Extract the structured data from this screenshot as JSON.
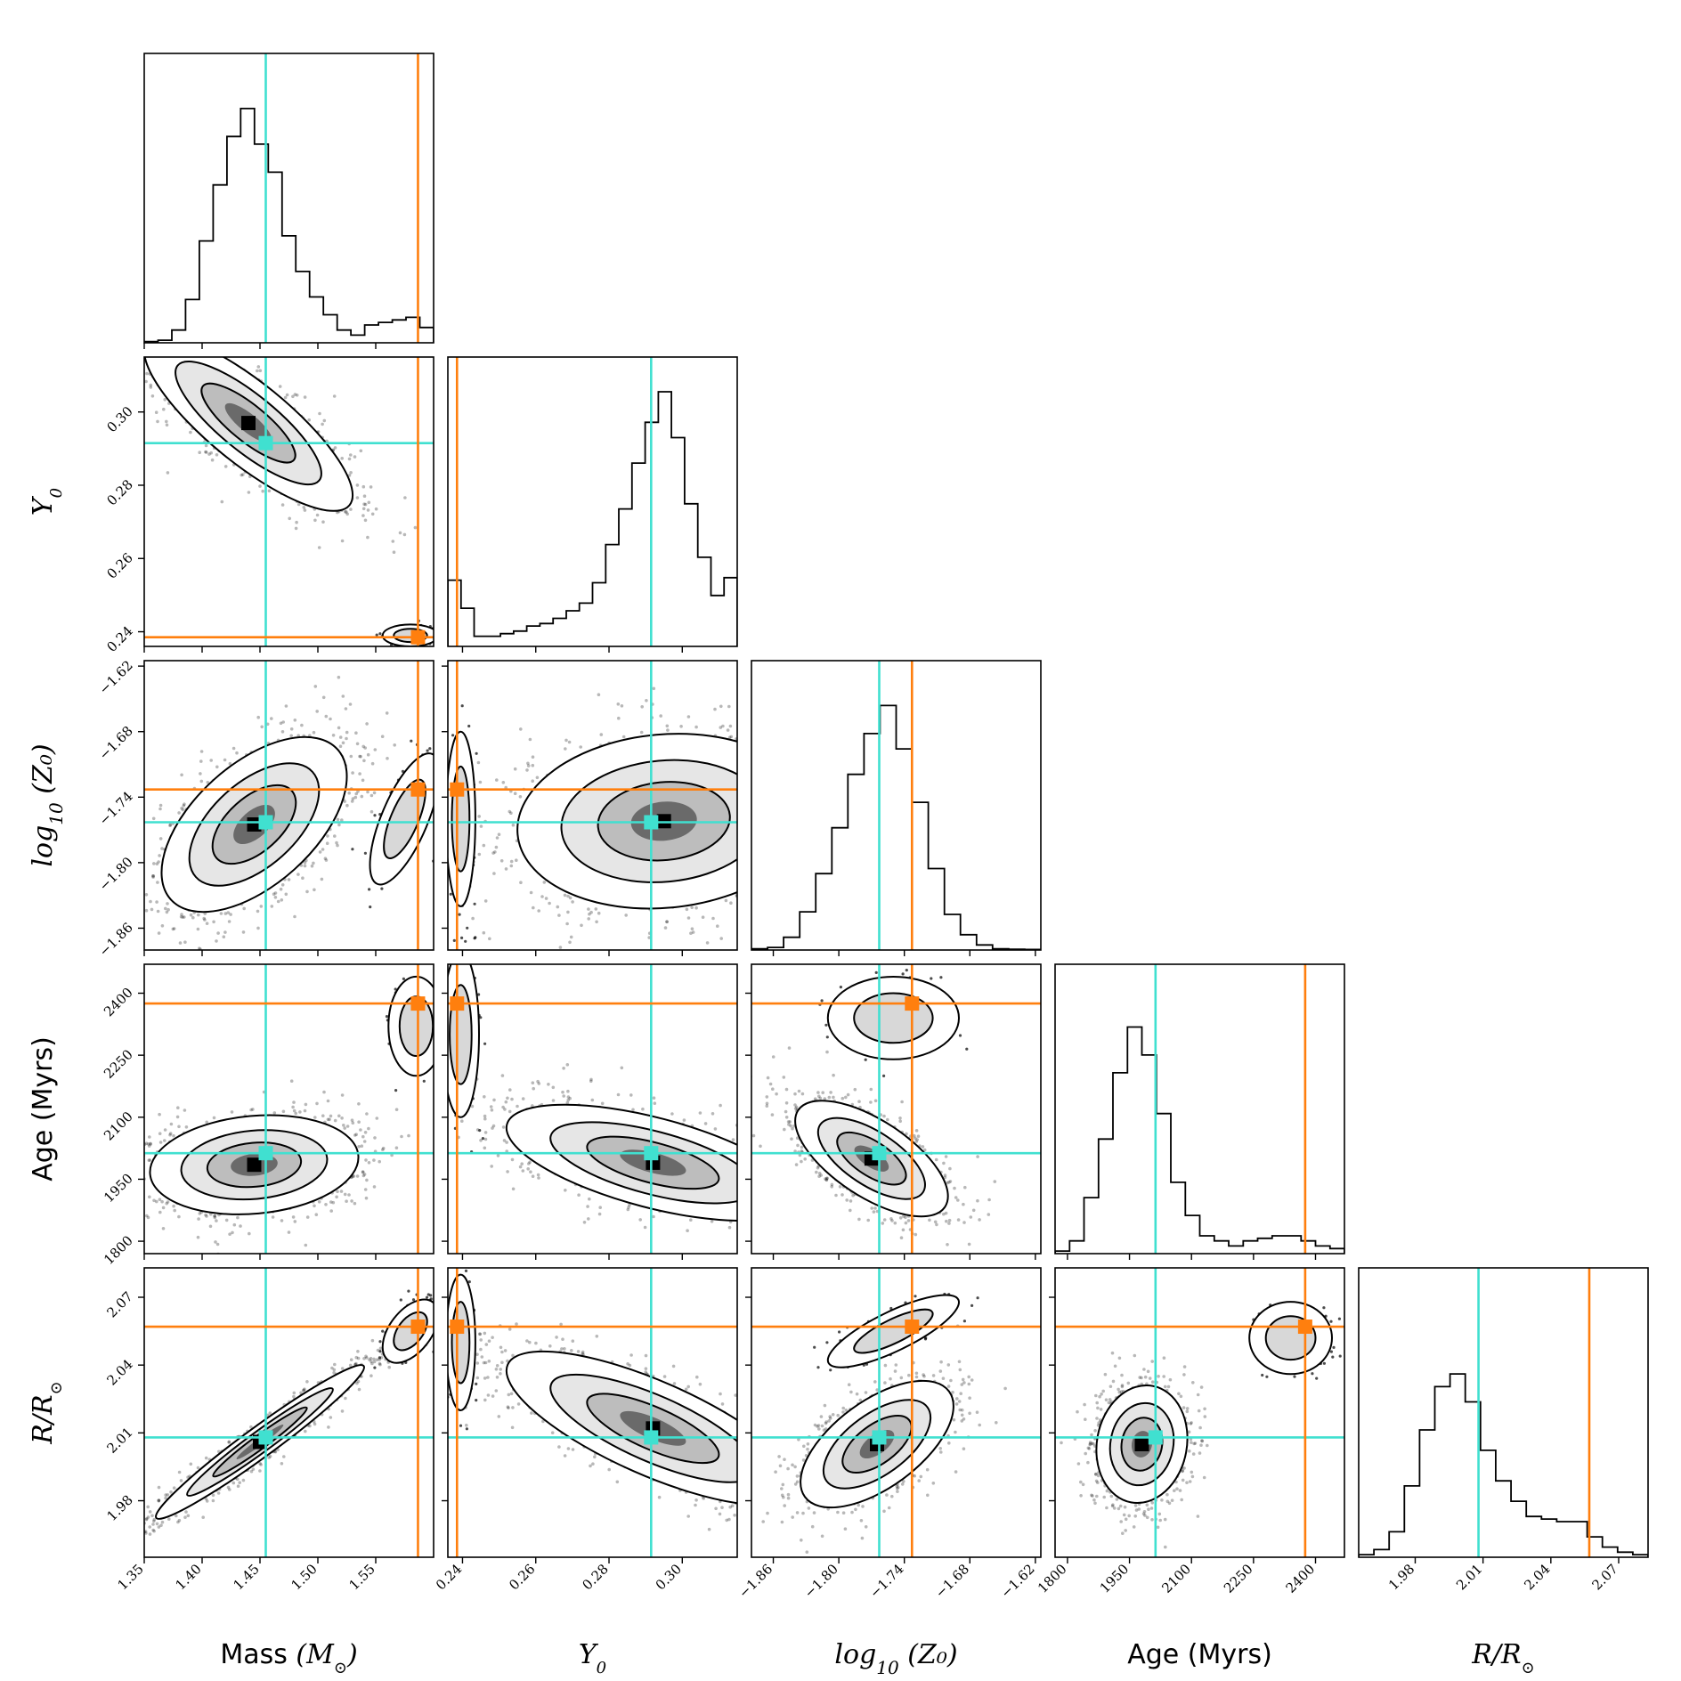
{
  "chart_data": {
    "type": "corner",
    "parameters": [
      {
        "key": "mass",
        "label_text": "Mass ",
        "label_math": "(M",
        "label_sub": "⊙",
        "label_close": ")",
        "range": [
          1.35,
          1.6
        ],
        "ticks": [
          1.35,
          1.4,
          1.45,
          1.5,
          1.55
        ],
        "tick_labels": [
          "1.35",
          "1.40",
          "1.45",
          "1.50",
          "1.55"
        ]
      },
      {
        "key": "y0",
        "label_text": "",
        "label_math": "Y",
        "label_sub": "0",
        "label_close": "",
        "range": [
          0.236,
          0.315
        ],
        "ticks": [
          0.24,
          0.26,
          0.28,
          0.3
        ],
        "tick_labels": [
          "0.24",
          "0.26",
          "0.28",
          "0.30"
        ]
      },
      {
        "key": "logz",
        "label_text": "log",
        "label_math": "",
        "label_sub": "10",
        "label_close": " (Z₀)",
        "range": [
          -1.88,
          -1.615
        ],
        "ticks": [
          -1.86,
          -1.8,
          -1.74,
          -1.68,
          -1.62
        ],
        "tick_labels": [
          "−1.86",
          "−1.80",
          "−1.74",
          "−1.68",
          "−1.62"
        ]
      },
      {
        "key": "age",
        "label_text": "Age (Myrs)",
        "label_math": "",
        "label_sub": "",
        "label_close": "",
        "range": [
          1770,
          2470
        ],
        "ticks": [
          1800,
          1950,
          2100,
          2250,
          2400
        ],
        "tick_labels": [
          "1800",
          "1950",
          "2100",
          "2250",
          "2400"
        ]
      },
      {
        "key": "radius",
        "label_text": "",
        "label_math": "R/R",
        "label_sub": "⊙",
        "label_close": "",
        "range": [
          1.955,
          2.083
        ],
        "ticks": [
          1.98,
          2.01,
          2.04,
          2.07
        ],
        "tick_labels": [
          "1.98",
          "2.01",
          "2.04",
          "2.07"
        ]
      }
    ],
    "markers": {
      "cyan": {
        "color": "#40e0d0",
        "values": [
          1.455,
          0.2915,
          -1.763,
          2013,
          2.008
        ]
      },
      "orange": {
        "color": "#ff7f0e",
        "values": [
          1.5865,
          0.2385,
          -1.733,
          2375,
          2.057
        ]
      }
    },
    "histograms": {
      "mass": [
        0.005,
        0.01,
        0.05,
        0.17,
        0.4,
        0.62,
        0.81,
        0.92,
        0.78,
        0.67,
        0.42,
        0.28,
        0.18,
        0.11,
        0.05,
        0.03,
        0.07,
        0.08,
        0.09,
        0.1,
        0.06
      ],
      "y0": [
        0.26,
        0.15,
        0.04,
        0.04,
        0.05,
        0.06,
        0.08,
        0.09,
        0.11,
        0.14,
        0.17,
        0.25,
        0.4,
        0.54,
        0.72,
        0.88,
        1.0,
        0.82,
        0.56,
        0.35,
        0.2,
        0.27
      ],
      "logz": [
        0.005,
        0.01,
        0.05,
        0.15,
        0.3,
        0.48,
        0.69,
        0.85,
        0.96,
        0.79,
        0.58,
        0.32,
        0.14,
        0.06,
        0.02,
        0.005,
        0.003,
        0.002
      ],
      "age": [
        0.01,
        0.05,
        0.22,
        0.45,
        0.71,
        0.89,
        0.78,
        0.55,
        0.28,
        0.15,
        0.07,
        0.05,
        0.03,
        0.05,
        0.06,
        0.07,
        0.07,
        0.05,
        0.03,
        0.02
      ],
      "radius": [
        0.01,
        0.03,
        0.1,
        0.28,
        0.5,
        0.67,
        0.72,
        0.61,
        0.42,
        0.3,
        0.22,
        0.16,
        0.15,
        0.14,
        0.14,
        0.08,
        0.04,
        0.02,
        0.01
      ]
    },
    "clouds": {
      "0-1": [
        {
          "c": [
            1.44,
            0.297
          ],
          "s": [
            0.045,
            0.012
          ],
          "rho": -0.82,
          "w": 0.95
        },
        {
          "c": [
            1.58,
            0.239
          ],
          "s": [
            0.012,
            0.0015
          ],
          "rho": 0,
          "w": 0.05
        }
      ],
      "0-2": [
        {
          "c": [
            1.445,
            -1.765
          ],
          "s": [
            0.04,
            0.04
          ],
          "rho": 0.55,
          "w": 0.92
        },
        {
          "c": [
            1.575,
            -1.76
          ],
          "s": [
            0.015,
            0.03
          ],
          "rho": 0.7,
          "w": 0.08
        }
      ],
      "0-3": [
        {
          "c": [
            1.445,
            1985
          ],
          "s": [
            0.045,
            60
          ],
          "rho": 0.15,
          "w": 0.92
        },
        {
          "c": [
            1.585,
            2320
          ],
          "s": [
            0.012,
            60
          ],
          "rho": 0,
          "w": 0.08
        }
      ],
      "0-4": [
        {
          "c": [
            1.45,
            2.006
          ],
          "s": [
            0.045,
            0.017
          ],
          "rho": 0.97,
          "w": 0.92
        },
        {
          "c": [
            1.58,
            2.055
          ],
          "s": [
            0.012,
            0.007
          ],
          "rho": 0.5,
          "w": 0.08
        }
      ],
      "1-2": [
        {
          "c": [
            0.295,
            -1.762
          ],
          "s": [
            0.02,
            0.04
          ],
          "rho": 0.1,
          "w": 0.9
        },
        {
          "c": [
            0.2395,
            -1.76
          ],
          "s": [
            0.002,
            0.04
          ],
          "rho": 0,
          "w": 0.1
        }
      ],
      "1-3": [
        {
          "c": [
            0.292,
            1990
          ],
          "s": [
            0.02,
            70
          ],
          "rho": -0.6,
          "w": 0.9
        },
        {
          "c": [
            0.2395,
            2300
          ],
          "s": [
            0.0025,
            100
          ],
          "rho": 0,
          "w": 0.1
        }
      ],
      "1-4": [
        {
          "c": [
            0.292,
            2.012
          ],
          "s": [
            0.02,
            0.017
          ],
          "rho": -0.75,
          "w": 0.9
        },
        {
          "c": [
            0.2395,
            2.05
          ],
          "s": [
            0.002,
            0.015
          ],
          "rho": 0,
          "w": 0.1
        }
      ],
      "2-3": [
        {
          "c": [
            -1.77,
            2000
          ],
          "s": [
            0.035,
            70
          ],
          "rho": -0.65,
          "w": 0.92
        },
        {
          "c": [
            -1.75,
            2340
          ],
          "s": [
            0.03,
            50
          ],
          "rho": 0,
          "w": 0.08
        }
      ],
      "2-4": [
        {
          "c": [
            -1.765,
            2.005
          ],
          "s": [
            0.035,
            0.014
          ],
          "rho": 0.6,
          "w": 0.9
        },
        {
          "c": [
            -1.75,
            2.055
          ],
          "s": [
            0.03,
            0.008
          ],
          "rho": 0.8,
          "w": 0.1
        }
      ],
      "3-4": [
        {
          "c": [
            1980,
            2.005
          ],
          "s": [
            55,
            0.013
          ],
          "rho": 0.1,
          "w": 0.9
        },
        {
          "c": [
            2340,
            2.052
          ],
          "s": [
            50,
            0.008
          ],
          "rho": 0,
          "w": 0.1
        }
      ]
    }
  }
}
